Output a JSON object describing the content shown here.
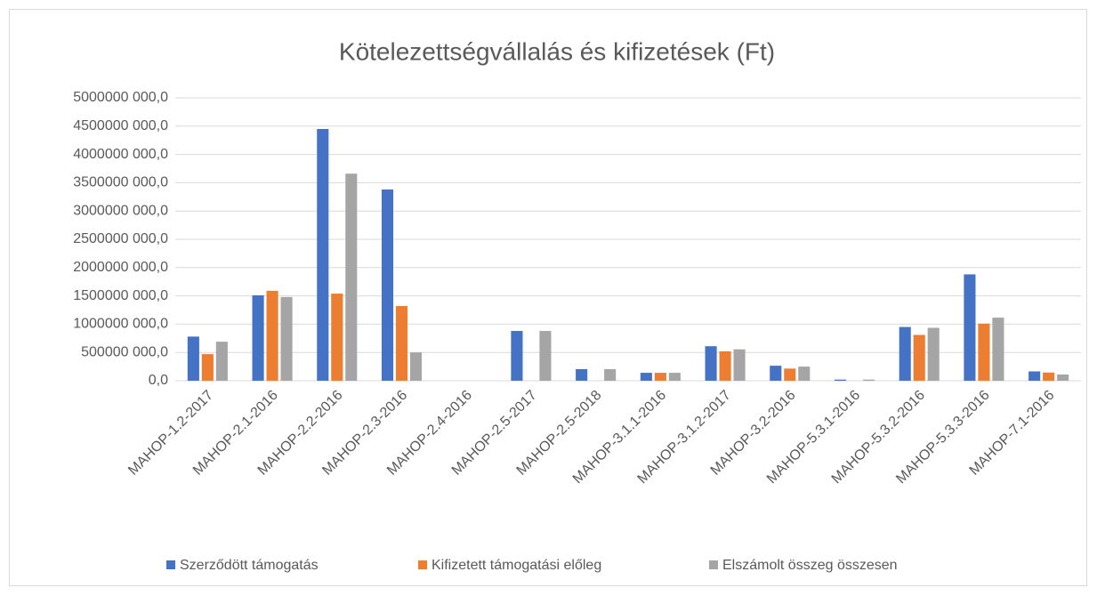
{
  "chart_data": {
    "type": "bar",
    "title": "Kötelezettségvállalás és kifizetések (Ft)",
    "categories": [
      "MAHOP-1.2-2017",
      "MAHOP-2.1-2016",
      "MAHOP-2.2-2016",
      "MAHOP-2.3-2016",
      "MAHOP-2.4-2016",
      "MAHOP-2.5-2017",
      "MAHOP-2.5-2018",
      "MAHOP-3.1.1-2016",
      "MAHOP-3.1.2-2017",
      "MAHOP-3.2-2016",
      "MAHOP-5.3.1-2016",
      "MAHOP-5.3.2-2016",
      "MAHOP-5.3.3-2016",
      "MAHOP-7.1-2016"
    ],
    "series": [
      {
        "name": "Szerződött támogatás",
        "color": "#4472c4",
        "values": [
          780000000,
          1510000000,
          4450000000,
          3380000000,
          0,
          880000000,
          205000000,
          140000000,
          610000000,
          265000000,
          20000000,
          950000000,
          1880000000,
          165000000
        ]
      },
      {
        "name": "Kifizetett támogatási előleg",
        "color": "#ed7d31",
        "values": [
          470000000,
          1590000000,
          1540000000,
          1320000000,
          0,
          0,
          0,
          140000000,
          520000000,
          215000000,
          0,
          810000000,
          1010000000,
          145000000
        ]
      },
      {
        "name": "Elszámolt összeg összesen",
        "color": "#a5a5a5",
        "values": [
          690000000,
          1480000000,
          3660000000,
          500000000,
          0,
          880000000,
          205000000,
          140000000,
          555000000,
          250000000,
          20000000,
          935000000,
          1115000000,
          110000000
        ]
      }
    ],
    "ylim": [
      0,
      5000000000
    ],
    "yticks": [
      {
        "value": 0,
        "label": "0,0"
      },
      {
        "value": 500000000,
        "label": "500000 000,0"
      },
      {
        "value": 1000000000,
        "label": "1000000 000,0"
      },
      {
        "value": 1500000000,
        "label": "1500000 000,0"
      },
      {
        "value": 2000000000,
        "label": "2000000 000,0"
      },
      {
        "value": 2500000000,
        "label": "2500000 000,0"
      },
      {
        "value": 3000000000,
        "label": "3000000 000,0"
      },
      {
        "value": 3500000000,
        "label": "3500000 000,0"
      },
      {
        "value": 4000000000,
        "label": "4000000 000,0"
      },
      {
        "value": 4500000000,
        "label": "4500000 000,0"
      },
      {
        "value": 5000000000,
        "label": "5000000 000,0"
      }
    ],
    "grid": true,
    "legend": "bottom"
  }
}
